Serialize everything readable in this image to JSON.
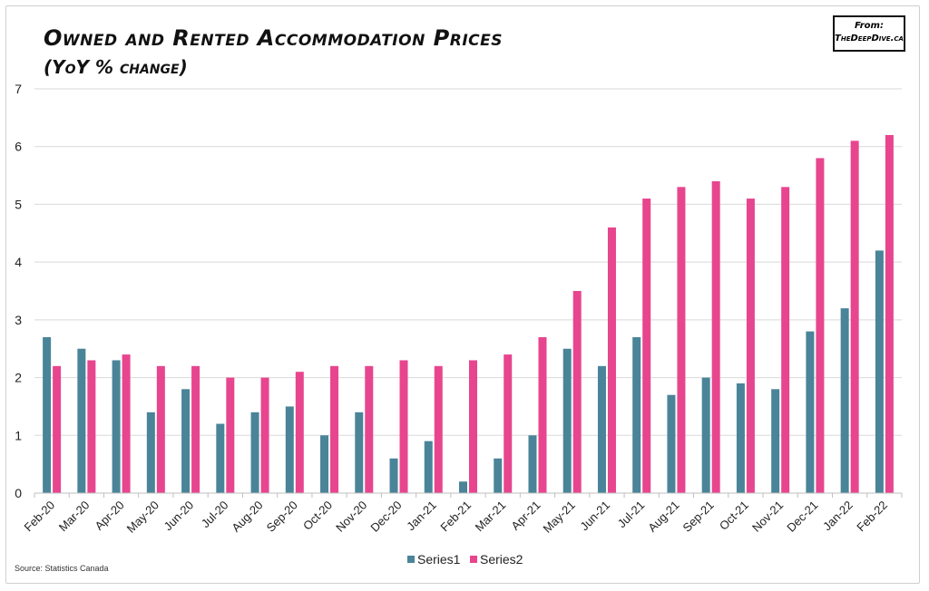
{
  "title": "Owned and Rented Accommodation Prices",
  "subtitle": "(YoY % change)",
  "badge": {
    "line1": "From:",
    "line2": "TheDeepDive.ca"
  },
  "source": "Source: Statistics Canada",
  "colors": {
    "series1": "#4a8499",
    "series2": "#e8458f",
    "grid": "#d9d9d9",
    "axis": "#bfbfbf"
  },
  "chart_data": {
    "type": "bar",
    "categories": [
      "Feb-20",
      "Mar-20",
      "Apr-20",
      "May-20",
      "Jun-20",
      "Jul-20",
      "Aug-20",
      "Sep-20",
      "Oct-20",
      "Nov-20",
      "Dec-20",
      "Jan-21",
      "Feb-21",
      "Mar-21",
      "Apr-21",
      "May-21",
      "Jun-21",
      "Jul-21",
      "Aug-21",
      "Sep-21",
      "Oct-21",
      "Nov-21",
      "Dec-21",
      "Jan-22",
      "Feb-22"
    ],
    "series": [
      {
        "name": "Series1",
        "values": [
          2.7,
          2.5,
          2.3,
          1.4,
          1.8,
          1.2,
          1.4,
          1.5,
          1.0,
          1.4,
          0.6,
          0.9,
          0.2,
          0.6,
          1.0,
          2.5,
          2.2,
          2.7,
          1.7,
          2.0,
          1.9,
          1.8,
          2.8,
          3.2,
          4.2
        ]
      },
      {
        "name": "Series2",
        "values": [
          2.2,
          2.3,
          2.4,
          2.2,
          2.2,
          2.0,
          2.0,
          2.1,
          2.2,
          2.2,
          2.3,
          2.2,
          2.3,
          2.4,
          2.7,
          3.5,
          4.6,
          5.1,
          5.3,
          5.4,
          5.1,
          5.3,
          5.8,
          6.1,
          6.2
        ]
      }
    ],
    "ylim": [
      0,
      7
    ],
    "yticks": [
      "0",
      "1",
      "2",
      "3",
      "4",
      "5",
      "6",
      "7"
    ],
    "grid": true,
    "legend_position": "bottom"
  }
}
